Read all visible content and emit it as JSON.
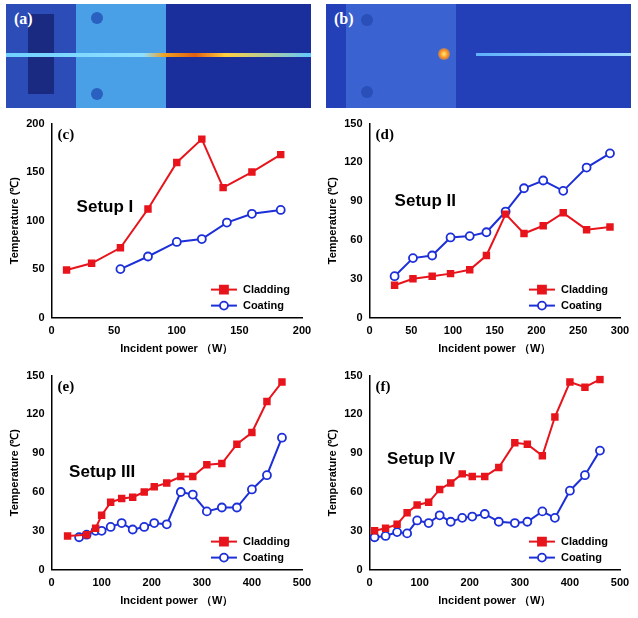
{
  "images": [
    {
      "label": "(a)"
    },
    {
      "label": "(b)"
    }
  ],
  "chart_data": [
    {
      "type": "line",
      "label": "(c)",
      "title": "Setup I",
      "x_label": "Incident power （W）",
      "y_label": "Temperature (℃)",
      "xlim": [
        0,
        200
      ],
      "xticks": [
        0,
        50,
        100,
        150,
        200
      ],
      "ylim": [
        0,
        200
      ],
      "yticks": [
        0,
        50,
        100,
        150,
        200
      ],
      "grid": false,
      "legend": "lower right",
      "series": [
        {
          "name": "Cladding",
          "color": "#e8141c",
          "marker": "square",
          "x": [
            12,
            32,
            55,
            77,
            100,
            120,
            137,
            160,
            183
          ],
          "values": [
            49,
            56,
            72,
            112,
            160,
            184,
            134,
            150,
            168
          ]
        },
        {
          "name": "Coating",
          "color": "#1c2fd8",
          "marker": "circle",
          "x": [
            55,
            77,
            100,
            120,
            140,
            160,
            183
          ],
          "values": [
            50,
            63,
            78,
            81,
            98,
            107,
            111
          ]
        }
      ]
    },
    {
      "type": "line",
      "label": "(d)",
      "title": "Setup II",
      "x_label": "Incident power （W）",
      "y_label": "Temperature (℃)",
      "xlim": [
        0,
        300
      ],
      "xticks": [
        0,
        50,
        100,
        150,
        200,
        250,
        300
      ],
      "ylim": [
        0,
        150
      ],
      "yticks": [
        0,
        30,
        60,
        90,
        120,
        150
      ],
      "grid": false,
      "legend": "lower right",
      "series": [
        {
          "name": "Cladding",
          "color": "#e8141c",
          "marker": "square",
          "x": [
            30,
            52,
            75,
            97,
            120,
            140,
            163,
            185,
            208,
            232,
            260,
            288
          ],
          "values": [
            25,
            30,
            32,
            34,
            37,
            48,
            80,
            65,
            71,
            81,
            68,
            70
          ]
        },
        {
          "name": "Coating",
          "color": "#1c2fd8",
          "marker": "circle",
          "x": [
            30,
            52,
            75,
            97,
            120,
            140,
            163,
            185,
            208,
            232,
            260,
            288
          ],
          "values": [
            32,
            46,
            48,
            62,
            63,
            66,
            82,
            100,
            106,
            98,
            116,
            127
          ]
        }
      ]
    },
    {
      "type": "line",
      "label": "(e)",
      "title": "Setup III",
      "x_label": "Incident power （W）",
      "y_label": "Temperature (℃)",
      "xlim": [
        0,
        500
      ],
      "xticks": [
        0,
        100,
        200,
        300,
        400,
        500
      ],
      "ylim": [
        0,
        150
      ],
      "yticks": [
        0,
        30,
        60,
        90,
        120,
        150
      ],
      "grid": false,
      "legend": "lower right",
      "series": [
        {
          "name": "Cladding",
          "color": "#e8141c",
          "marker": "square",
          "x": [
            32,
            70,
            88,
            100,
            118,
            140,
            162,
            185,
            205,
            230,
            258,
            282,
            310,
            340,
            370,
            400,
            430,
            460
          ],
          "values": [
            26,
            27,
            32,
            42,
            52,
            55,
            56,
            60,
            64,
            67,
            72,
            72,
            81,
            82,
            97,
            106,
            130,
            145
          ]
        },
        {
          "name": "Coating",
          "color": "#1c2fd8",
          "marker": "circle",
          "x": [
            55,
            70,
            88,
            100,
            118,
            140,
            162,
            185,
            205,
            230,
            258,
            282,
            310,
            340,
            370,
            400,
            430,
            460
          ],
          "values": [
            25,
            27,
            30,
            30,
            33,
            36,
            31,
            33,
            36,
            35,
            60,
            58,
            45,
            48,
            48,
            62,
            73,
            102
          ]
        }
      ]
    },
    {
      "type": "line",
      "label": "(f)",
      "title": "Setup IV",
      "x_label": "Incident power （W）",
      "y_label": "Temperature (℃)",
      "xlim": [
        0,
        500
      ],
      "xticks": [
        0,
        100,
        200,
        300,
        400,
        500
      ],
      "ylim": [
        0,
        150
      ],
      "yticks": [
        0,
        30,
        60,
        90,
        120,
        150
      ],
      "grid": false,
      "legend": "lower right",
      "series": [
        {
          "name": "Cladding",
          "color": "#e8141c",
          "marker": "square",
          "x": [
            10,
            32,
            55,
            75,
            95,
            118,
            140,
            162,
            185,
            205,
            230,
            258,
            290,
            315,
            345,
            370,
            400,
            430,
            460
          ],
          "values": [
            30,
            32,
            35,
            44,
            50,
            52,
            62,
            67,
            74,
            72,
            72,
            79,
            98,
            97,
            88,
            118,
            145,
            141,
            147
          ]
        },
        {
          "name": "Coating",
          "color": "#1c2fd8",
          "marker": "circle",
          "x": [
            10,
            32,
            55,
            75,
            95,
            118,
            140,
            162,
            185,
            205,
            230,
            258,
            290,
            315,
            345,
            370,
            400,
            430,
            460
          ],
          "values": [
            25,
            26,
            29,
            28,
            38,
            36,
            42,
            37,
            40,
            41,
            43,
            37,
            36,
            37,
            45,
            40,
            61,
            73,
            92
          ]
        }
      ]
    }
  ]
}
